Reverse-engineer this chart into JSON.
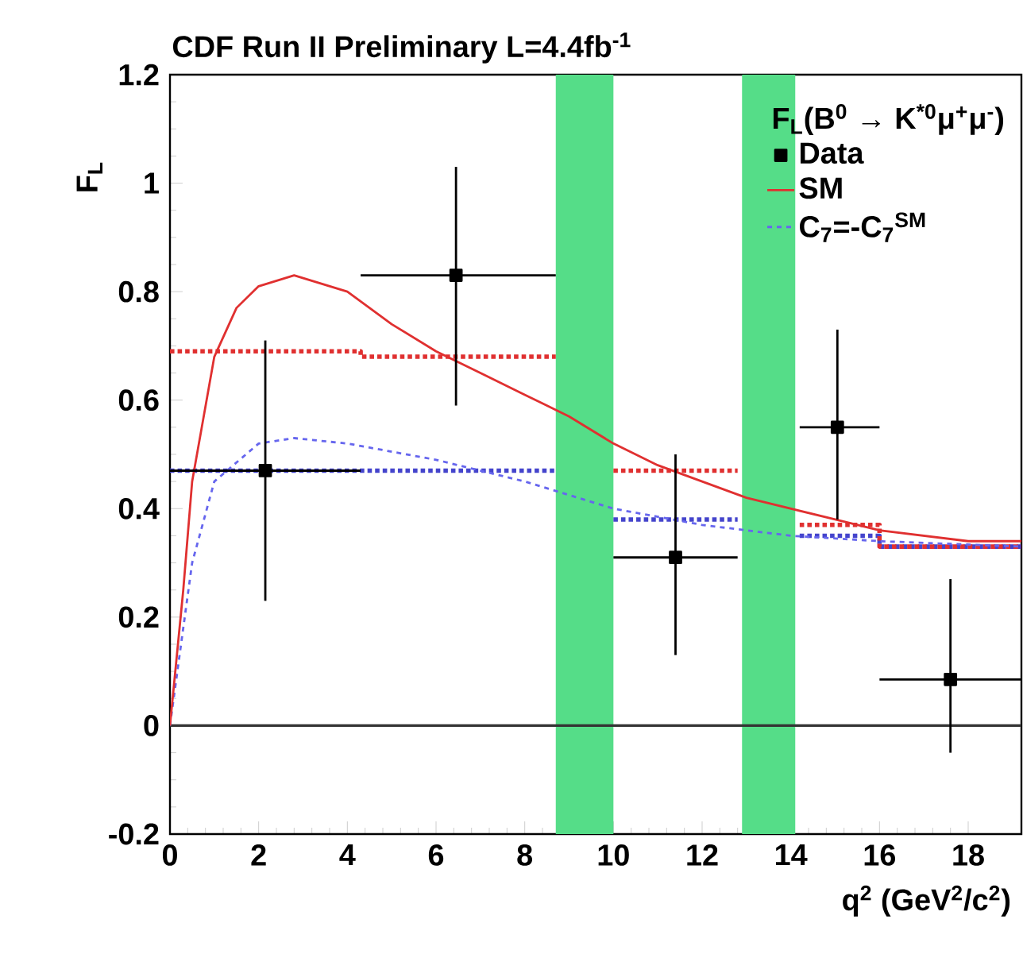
{
  "chart_data": {
    "type": "line",
    "title": "CDF Run II Preliminary L=4.4fb$^{-1}$",
    "xlabel": "q$^{2}$ (GeV$^{2}$/c$^{2}$)",
    "ylabel": "F$_{L}$",
    "legend_title": "F$_{L}$(B$^{0}$ → K$^{*0}$μ$^{+}$μ$^{-}$)",
    "xlim": [
      0,
      19.2
    ],
    "ylim": [
      -0.2,
      1.2
    ],
    "xticks": [
      0,
      2,
      4,
      6,
      8,
      10,
      12,
      14,
      16,
      18
    ],
    "yticks": [
      -0.2,
      0,
      0.2,
      0.4,
      0.6,
      0.8,
      1,
      1.2
    ],
    "legend": "top right",
    "ref_lines": [
      {
        "axis": "y",
        "value": 0,
        "color": "#333333"
      }
    ],
    "bands": [
      {
        "axis": "x",
        "from": 8.7,
        "to": 10.0,
        "color": "#55dd88"
      },
      {
        "axis": "x",
        "from": 12.9,
        "to": 14.1,
        "color": "#55dd88"
      }
    ],
    "series": [
      {
        "name": "Data",
        "type": "scatter",
        "color": "#000000",
        "marker": "square",
        "x": [
          2.15,
          6.45,
          11.4,
          15.05,
          17.6
        ],
        "values": [
          0.47,
          0.83,
          0.31,
          0.55,
          0.085
        ],
        "errors": [
          [
            0.23,
            0.71
          ],
          [
            0.59,
            1.03
          ],
          [
            0.13,
            0.5
          ],
          [
            0.38,
            0.73
          ],
          [
            -0.05,
            0.27
          ]
        ],
        "xerrors": [
          [
            0,
            4.3
          ],
          [
            4.3,
            8.7
          ],
          [
            10,
            12.8
          ],
          [
            14.2,
            16
          ],
          [
            16,
            19.2
          ]
        ]
      },
      {
        "name": "SM",
        "color": "#e03030",
        "line_style": "solid",
        "x": [
          0,
          0.3,
          0.5,
          1,
          1.5,
          2,
          2.8,
          4,
          5,
          6,
          7,
          8,
          9,
          10,
          11,
          12,
          13,
          14,
          15,
          16,
          17,
          18,
          19.2
        ],
        "values": [
          0,
          0.25,
          0.45,
          0.68,
          0.77,
          0.81,
          0.83,
          0.8,
          0.74,
          0.69,
          0.65,
          0.61,
          0.57,
          0.52,
          0.48,
          0.45,
          0.42,
          0.4,
          0.38,
          0.36,
          0.35,
          0.34,
          0.34
        ]
      },
      {
        "name": "C$_{7}$=-C$_{7}$$^{SM}$",
        "color": "#6666ee",
        "line_style": "dashed",
        "x": [
          0,
          0.5,
          1,
          2,
          2.8,
          4,
          6,
          8,
          10,
          12,
          14,
          16,
          19.2
        ],
        "values": [
          0,
          0.3,
          0.45,
          0.52,
          0.53,
          0.52,
          0.49,
          0.45,
          0.4,
          0.37,
          0.35,
          0.34,
          0.33
        ]
      },
      {
        "color": "#e03030",
        "line_style": "dotted",
        "x": [
          0,
          4.3,
          4.3,
          8.7
        ],
        "values": [
          0.69,
          0.69,
          0.68,
          0.68
        ]
      },
      {
        "color": "#e03030",
        "line_style": "dotted",
        "x": [
          10,
          12.8
        ],
        "values": [
          0.47,
          0.47
        ]
      },
      {
        "color": "#e03030",
        "line_style": "dotted",
        "x": [
          14.2,
          16,
          16,
          19.2
        ],
        "values": [
          0.37,
          0.37,
          0.33,
          0.33
        ]
      },
      {
        "color": "#4444cc",
        "line_style": "dotted",
        "x": [
          0,
          4.3,
          4.3,
          8.7
        ],
        "values": [
          0.47,
          0.47,
          0.47,
          0.47
        ]
      },
      {
        "color": "#4444cc",
        "line_style": "dotted",
        "x": [
          10,
          12.8
        ],
        "values": [
          0.38,
          0.38
        ]
      },
      {
        "color": "#4444cc",
        "line_style": "dotted",
        "x": [
          14.2,
          16,
          16,
          19.2
        ],
        "values": [
          0.35,
          0.35,
          0.33,
          0.33
        ]
      }
    ]
  }
}
